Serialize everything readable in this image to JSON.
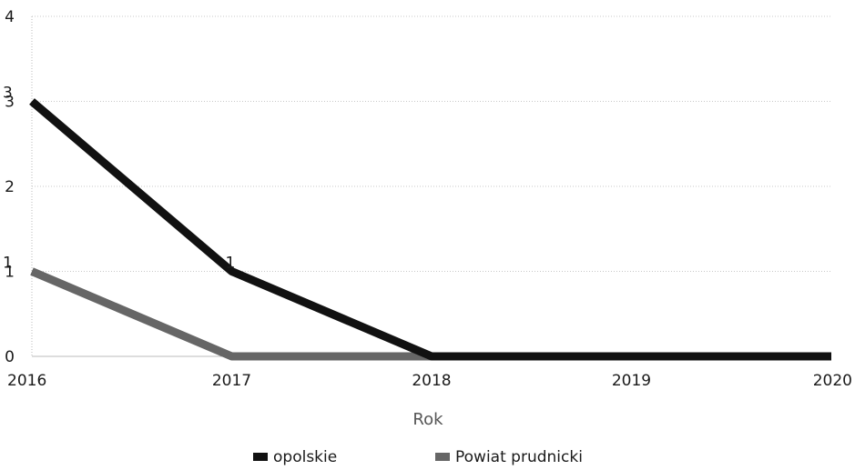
{
  "chart_data": {
    "type": "line",
    "title": "",
    "xlabel": "Rok",
    "ylabel": "",
    "categories": [
      "2016",
      "2017",
      "2018",
      "2019",
      "2020"
    ],
    "ylim": [
      0,
      4
    ],
    "yticks": [
      "0",
      "1",
      "2",
      "3",
      "4"
    ],
    "grid": true,
    "legend_position": "bottom",
    "series": [
      {
        "name": "opolskie",
        "values": [
          3,
          1,
          0,
          0,
          0
        ],
        "color": "#111111",
        "labels": [
          "3",
          "1",
          null,
          null,
          null
        ]
      },
      {
        "name": "Powiat prudnicki",
        "values": [
          1,
          0,
          0,
          0,
          0
        ],
        "color": "#666666",
        "labels": [
          "1",
          null,
          null,
          null,
          null
        ]
      }
    ]
  }
}
